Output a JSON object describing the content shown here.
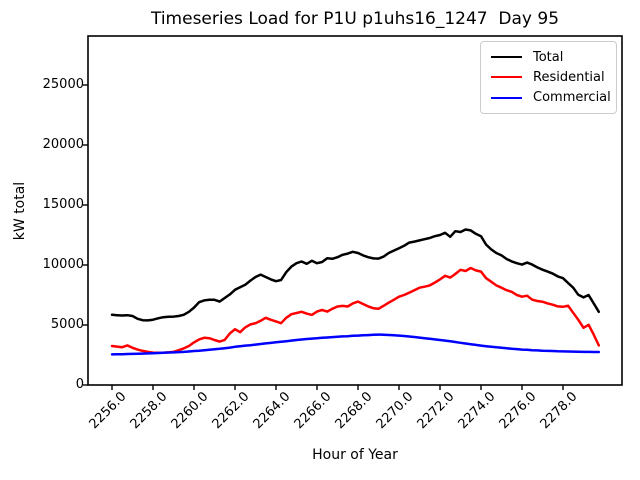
{
  "window_title": "Timeseries Load for P1U p1uhs16_1247  Day 95",
  "chart_data": {
    "type": "line",
    "title": "Timeseries Load for P1U p1uhs16_1247  Day 95",
    "xlabel": "Hour of Year",
    "ylabel": "kW total",
    "xlim": [
      2254.83,
      2280.88
    ],
    "ylim": [
      0,
      29083
    ],
    "grid": false,
    "xticks": [
      2256,
      2258,
      2260,
      2262,
      2264,
      2266,
      2268,
      2270,
      2272,
      2274,
      2276,
      2278
    ],
    "xticklabels": [
      "2256.0",
      "2258.0",
      "2260.0",
      "2262.0",
      "2264.0",
      "2266.0",
      "2268.0",
      "2270.0",
      "2272.0",
      "2274.0",
      "2276.0",
      "2278.0"
    ],
    "xtick_rotation": 45,
    "yticks": [
      0,
      5000,
      10000,
      15000,
      20000,
      25000
    ],
    "yticklabels": [
      "0",
      "5000",
      "10000",
      "15000",
      "20000",
      "25000"
    ],
    "legend": {
      "position": "upper right",
      "entries": [
        "Total",
        "Residential",
        "Commercial"
      ]
    },
    "x_hours": [
      2256.0,
      2256.25,
      2256.5,
      2256.75,
      2257.0,
      2257.25,
      2257.5,
      2257.75,
      2258.0,
      2258.25,
      2258.5,
      2258.75,
      2259.0,
      2259.25,
      2259.5,
      2259.75,
      2260.0,
      2260.25,
      2260.5,
      2260.75,
      2261.0,
      2261.25,
      2261.5,
      2261.75,
      2262.0,
      2262.25,
      2262.5,
      2262.75,
      2263.0,
      2263.25,
      2263.5,
      2263.75,
      2264.0,
      2264.25,
      2264.5,
      2264.75,
      2265.0,
      2265.25,
      2265.5,
      2265.75,
      2266.0,
      2266.25,
      2266.5,
      2266.75,
      2267.0,
      2267.25,
      2267.5,
      2267.75,
      2268.0,
      2268.25,
      2268.5,
      2268.75,
      2269.0,
      2269.25,
      2269.5,
      2269.75,
      2270.0,
      2270.25,
      2270.5,
      2270.75,
      2271.0,
      2271.25,
      2271.5,
      2271.75,
      2272.0,
      2272.25,
      2272.5,
      2272.75,
      2273.0,
      2273.25,
      2273.5,
      2273.75,
      2274.0,
      2274.25,
      2274.5,
      2274.75,
      2275.0,
      2275.25,
      2275.5,
      2275.75,
      2276.0,
      2276.25,
      2276.5,
      2276.75,
      2277.0,
      2277.25,
      2277.5,
      2277.75,
      2278.0,
      2278.25,
      2278.5,
      2278.75,
      2279.0,
      2279.25,
      2279.5,
      2279.75
    ],
    "series": [
      {
        "name": "Total",
        "color": "#000000",
        "values": [
          5850,
          5820,
          5790,
          5820,
          5750,
          5520,
          5400,
          5380,
          5440,
          5560,
          5650,
          5690,
          5700,
          5750,
          5850,
          6100,
          6450,
          6900,
          7050,
          7100,
          7100,
          6950,
          7250,
          7550,
          7930,
          8150,
          8350,
          8700,
          9000,
          9200,
          9000,
          8800,
          8650,
          8750,
          9400,
          9870,
          10150,
          10290,
          10100,
          10350,
          10150,
          10250,
          10570,
          10520,
          10650,
          10850,
          10950,
          11100,
          11000,
          10800,
          10650,
          10550,
          10530,
          10700,
          11000,
          11200,
          11400,
          11600,
          11870,
          11950,
          12050,
          12150,
          12250,
          12400,
          12500,
          12680,
          12350,
          12820,
          12750,
          12960,
          12880,
          12600,
          12400,
          11700,
          11300,
          11000,
          10800,
          10500,
          10300,
          10150,
          10030,
          10200,
          10030,
          9800,
          9610,
          9450,
          9280,
          9050,
          8900,
          8500,
          8110,
          7520,
          7300,
          7500,
          6800,
          6100
        ]
      },
      {
        "name": "Residential",
        "color": "#ff0000",
        "values": [
          3250,
          3200,
          3150,
          3300,
          3100,
          2950,
          2840,
          2760,
          2700,
          2680,
          2680,
          2720,
          2760,
          2900,
          3050,
          3250,
          3550,
          3800,
          3930,
          3900,
          3750,
          3620,
          3760,
          4300,
          4650,
          4400,
          4800,
          5050,
          5150,
          5350,
          5600,
          5430,
          5300,
          5150,
          5600,
          5900,
          6000,
          6100,
          5950,
          5840,
          6120,
          6260,
          6120,
          6350,
          6540,
          6590,
          6540,
          6800,
          6950,
          6750,
          6550,
          6400,
          6350,
          6600,
          6860,
          7100,
          7360,
          7500,
          7690,
          7900,
          8110,
          8190,
          8300,
          8530,
          8800,
          9100,
          8950,
          9250,
          9600,
          9500,
          9750,
          9550,
          9450,
          8900,
          8610,
          8300,
          8110,
          7900,
          7770,
          7500,
          7360,
          7440,
          7110,
          7000,
          6940,
          6800,
          6690,
          6550,
          6520,
          6610,
          6020,
          5430,
          4770,
          5020,
          4200,
          3300
        ]
      },
      {
        "name": "Commercial",
        "color": "#0000ff",
        "values": [
          2550,
          2560,
          2570,
          2580,
          2590,
          2600,
          2615,
          2630,
          2650,
          2670,
          2690,
          2705,
          2720,
          2740,
          2760,
          2790,
          2830,
          2860,
          2900,
          2940,
          2980,
          3020,
          3070,
          3120,
          3180,
          3230,
          3280,
          3320,
          3370,
          3420,
          3470,
          3510,
          3560,
          3610,
          3650,
          3700,
          3750,
          3790,
          3830,
          3870,
          3900,
          3930,
          3960,
          3990,
          4020,
          4050,
          4070,
          4100,
          4120,
          4140,
          4160,
          4180,
          4200,
          4190,
          4170,
          4150,
          4120,
          4080,
          4040,
          4000,
          3950,
          3900,
          3850,
          3800,
          3750,
          3700,
          3640,
          3580,
          3520,
          3460,
          3400,
          3340,
          3280,
          3230,
          3180,
          3140,
          3100,
          3060,
          3020,
          2990,
          2950,
          2930,
          2900,
          2880,
          2850,
          2840,
          2830,
          2810,
          2800,
          2790,
          2780,
          2770,
          2760,
          2760,
          2750,
          2750
        ]
      }
    ]
  }
}
